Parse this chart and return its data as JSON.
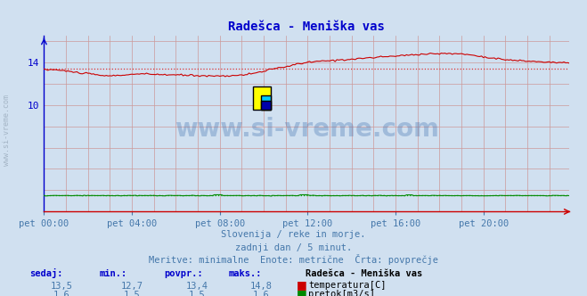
{
  "title": "Radešca - Meniška vas",
  "bg_color": "#d0e0f0",
  "plot_bg_color": "#d0e0f0",
  "x_labels": [
    "pet 00:00",
    "pet 04:00",
    "pet 08:00",
    "pet 12:00",
    "pet 16:00",
    "pet 20:00"
  ],
  "x_ticks_pos": [
    0,
    48,
    96,
    144,
    192,
    240
  ],
  "x_max": 287,
  "y_min": 0,
  "y_max": 16.5,
  "y_ticks": [
    10,
    14
  ],
  "temp_color": "#cc0000",
  "flow_color": "#008800",
  "avg_temp_color": "#dd3333",
  "avg_flow_color": "#00aa00",
  "title_color": "#0000cc",
  "axis_color_left": "#0000cc",
  "axis_color_bottom": "#cc0000",
  "tick_label_color": "#0000cc",
  "xtick_label_color": "#4477aa",
  "grid_color": "#cc9999",
  "vgrid_color": "#cc9999",
  "text_color": "#4477aa",
  "temp_avg_value": 13.4,
  "flow_avg_value": 1.5,
  "footer_line1": "Slovenija / reke in morje.",
  "footer_line2": "zadnji dan / 5 minut.",
  "footer_line3": "Meritve: minimalne  Enote: metrične  Črta: povprečje",
  "col_headers": [
    "sedaj:",
    "min.:",
    "povpr.:",
    "maks.:"
  ],
  "temp_row": [
    "13,5",
    "12,7",
    "13,4",
    "14,8"
  ],
  "flow_row": [
    "1,6",
    "1,5",
    "1,5",
    "1,6"
  ],
  "station_name": "Radešca - Meniška vas",
  "label_temp": "temperatura[C]",
  "label_flow": "pretok[m3/s]",
  "watermark": "www.si-vreme.com",
  "side_label": "www.si-vreme.com"
}
